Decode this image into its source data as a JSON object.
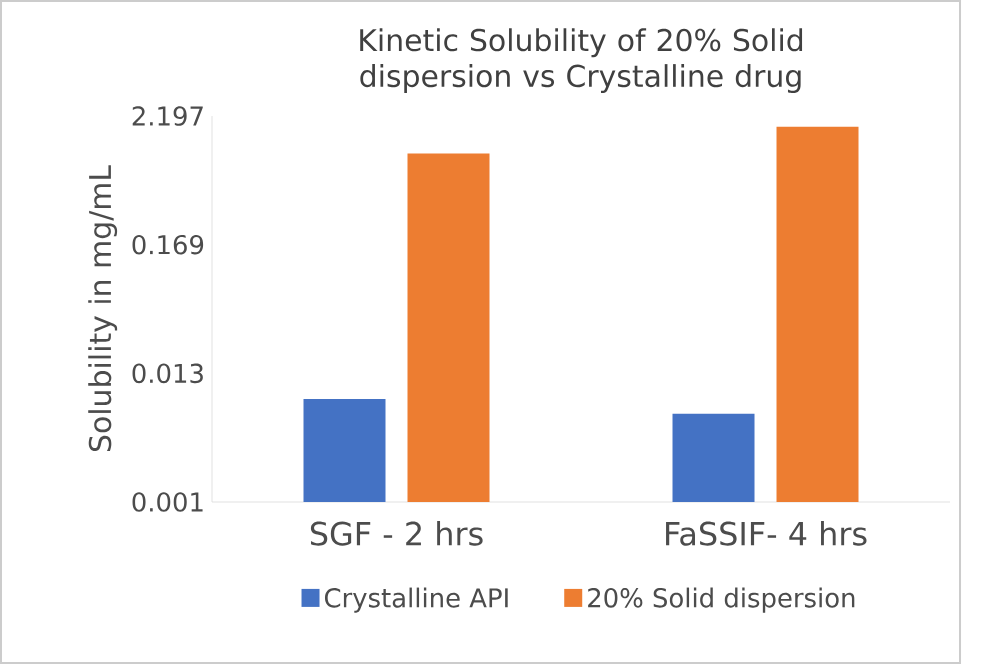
{
  "chart_data": {
    "type": "bar",
    "title": "Kinetic Solubility of 20% Solid dispersion vs Crystalline drug",
    "ylabel": "Solubility  in mg/mL",
    "categories": [
      "SGF - 2 hrs",
      "FaSSIF- 4 hrs"
    ],
    "series": [
      {
        "name": "Crystalline API",
        "color": "#4472c4",
        "values": [
          0.0078,
          0.0058
        ]
      },
      {
        "name": "20% Solid dispersion",
        "color": "#ed7d31",
        "values": [
          1.04,
          1.77
        ]
      }
    ],
    "log": "y",
    "ylim": [
      0.001,
      2.197
    ],
    "yticks": [
      0.001,
      0.013,
      0.169,
      2.197
    ],
    "grid": false,
    "legend": "bottom"
  }
}
